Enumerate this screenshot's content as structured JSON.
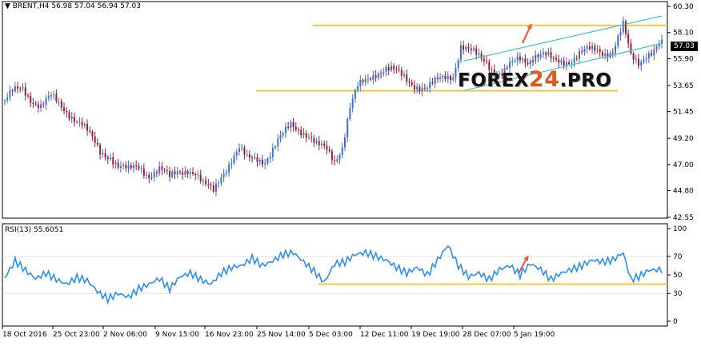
{
  "header": {
    "symbol_line": "BRENT,H4  56.98 57.04 56.94 57.03",
    "indicator_line": "RSI(13) 55.6051"
  },
  "watermark": {
    "part1": "FOREX",
    "part2": "24",
    "part3": ".PRO"
  },
  "current_price_tag": "57.03",
  "colors": {
    "bull": "#3b6ecf",
    "bear": "#9c1a3c",
    "rsi": "#2b8ff0",
    "support": "#f5c542",
    "channel": "#3fc2c2",
    "arrow": "#f05a40",
    "grid": "#c8c8c8"
  },
  "chart_data": [
    {
      "type": "candlestick",
      "title": "BRENT,H4",
      "ylim": [
        42.55,
        60.3
      ],
      "y_ticks": [
        "60.30",
        "58.10",
        "55.90",
        "53.65",
        "51.45",
        "49.20",
        "47.00",
        "44.80",
        "42.55"
      ],
      "x_ticks": [
        "18 Oct 2016",
        "25 Oct 23:00",
        "2 Nov 06:00",
        "9 Nov 15:00",
        "16 Nov 23:00",
        "25 Nov 14:00",
        "5 Dec 03:00",
        "12 Dec 11:00",
        "19 Dec 19:00",
        "28 Dec 07:00",
        "5 Jan 19:00"
      ],
      "close_path": [
        [
          0,
          52.4
        ],
        [
          3,
          53.0
        ],
        [
          7,
          53.3
        ],
        [
          10,
          52.6
        ],
        [
          14,
          52.0
        ],
        [
          18,
          52.6
        ],
        [
          22,
          51.8
        ],
        [
          26,
          51.2
        ],
        [
          30,
          50.4
        ],
        [
          34,
          49.0
        ],
        [
          37,
          48.0
        ],
        [
          41,
          47.8
        ],
        [
          44,
          46.9
        ],
        [
          48,
          46.4
        ],
        [
          52,
          46.8
        ],
        [
          56,
          46.2
        ],
        [
          60,
          46.6
        ],
        [
          64,
          45.8
        ],
        [
          67,
          46.4
        ],
        [
          71,
          46.7
        ],
        [
          74,
          46.2
        ],
        [
          77,
          45.2
        ],
        [
          81,
          44.8
        ],
        [
          84,
          46.2
        ],
        [
          88,
          47.4
        ],
        [
          91,
          48.2
        ],
        [
          94,
          47.4
        ],
        [
          98,
          47.6
        ],
        [
          101,
          47.4
        ],
        [
          104,
          48.2
        ],
        [
          108,
          49.4
        ],
        [
          111,
          50.4
        ],
        [
          115,
          50.0
        ],
        [
          118,
          49.4
        ],
        [
          121,
          48.5
        ],
        [
          125,
          48.2
        ],
        [
          128,
          47.4
        ],
        [
          131,
          48.6
        ],
        [
          134,
          51.8
        ],
        [
          137,
          53.4
        ],
        [
          141,
          54.2
        ],
        [
          144,
          54.8
        ],
        [
          148,
          55.1
        ],
        [
          151,
          54.8
        ],
        [
          154,
          54.4
        ],
        [
          158,
          53.9
        ],
        [
          161,
          53.6
        ],
        [
          164,
          53.4
        ],
        [
          167,
          53.8
        ],
        [
          171,
          54.4
        ],
        [
          174,
          54.6
        ],
        [
          177,
          57.0
        ],
        [
          180,
          56.5
        ],
        [
          184,
          56.0
        ],
        [
          187,
          55.7
        ],
        [
          190,
          54.9
        ],
        [
          193,
          54.6
        ],
        [
          196,
          55.2
        ],
        [
          200,
          55.9
        ],
        [
          203,
          55.8
        ],
        [
          206,
          56.3
        ],
        [
          210,
          56.1
        ],
        [
          213,
          55.6
        ],
        [
          216,
          55.7
        ],
        [
          220,
          55.9
        ],
        [
          223,
          56.3
        ],
        [
          226,
          56.5
        ],
        [
          230,
          56.6
        ],
        [
          233,
          56.5
        ],
        [
          236,
          56.6
        ],
        [
          240,
          58.6
        ],
        [
          243,
          56.0
        ],
        [
          246,
          55.6
        ],
        [
          249,
          56.4
        ],
        [
          252,
          56.6
        ],
        [
          254,
          57.03
        ]
      ],
      "annotations": {
        "resistance_level": 58.7,
        "support_level": 53.2,
        "channel_upper": [
          [
            178,
            55.7
          ],
          [
            255,
            59.5
          ]
        ],
        "channel_lower": [
          [
            178,
            53.2
          ],
          [
            255,
            57.2
          ]
        ]
      }
    },
    {
      "type": "line",
      "title": "RSI(13)",
      "ylim": [
        0,
        100
      ],
      "y_ticks": [
        "100",
        "70",
        "50",
        "30",
        "0"
      ],
      "level": 40,
      "values": [
        [
          0,
          47
        ],
        [
          4,
          65
        ],
        [
          8,
          55
        ],
        [
          12,
          46
        ],
        [
          16,
          52
        ],
        [
          20,
          45
        ],
        [
          24,
          40
        ],
        [
          28,
          47
        ],
        [
          32,
          44
        ],
        [
          36,
          32
        ],
        [
          40,
          24
        ],
        [
          44,
          30
        ],
        [
          48,
          26
        ],
        [
          52,
          35
        ],
        [
          56,
          40
        ],
        [
          60,
          46
        ],
        [
          64,
          35
        ],
        [
          68,
          48
        ],
        [
          72,
          52
        ],
        [
          76,
          45
        ],
        [
          80,
          40
        ],
        [
          84,
          52
        ],
        [
          88,
          58
        ],
        [
          92,
          60
        ],
        [
          96,
          68
        ],
        [
          100,
          60
        ],
        [
          104,
          65
        ],
        [
          108,
          72
        ],
        [
          112,
          74
        ],
        [
          116,
          64
        ],
        [
          120,
          54
        ],
        [
          124,
          42
        ],
        [
          128,
          62
        ],
        [
          132,
          64
        ],
        [
          136,
          72
        ],
        [
          140,
          74
        ],
        [
          144,
          70
        ],
        [
          148,
          66
        ],
        [
          152,
          58
        ],
        [
          156,
          52
        ],
        [
          160,
          58
        ],
        [
          164,
          50
        ],
        [
          168,
          66
        ],
        [
          172,
          82
        ],
        [
          176,
          60
        ],
        [
          180,
          48
        ],
        [
          184,
          52
        ],
        [
          188,
          45
        ],
        [
          192,
          56
        ],
        [
          196,
          60
        ],
        [
          200,
          50
        ],
        [
          204,
          62
        ],
        [
          208,
          56
        ],
        [
          212,
          45
        ],
        [
          216,
          52
        ],
        [
          220,
          56
        ],
        [
          224,
          60
        ],
        [
          228,
          66
        ],
        [
          232,
          64
        ],
        [
          236,
          66
        ],
        [
          240,
          74
        ],
        [
          243,
          45
        ],
        [
          246,
          48
        ],
        [
          250,
          55
        ],
        [
          254,
          55.6
        ]
      ]
    }
  ]
}
